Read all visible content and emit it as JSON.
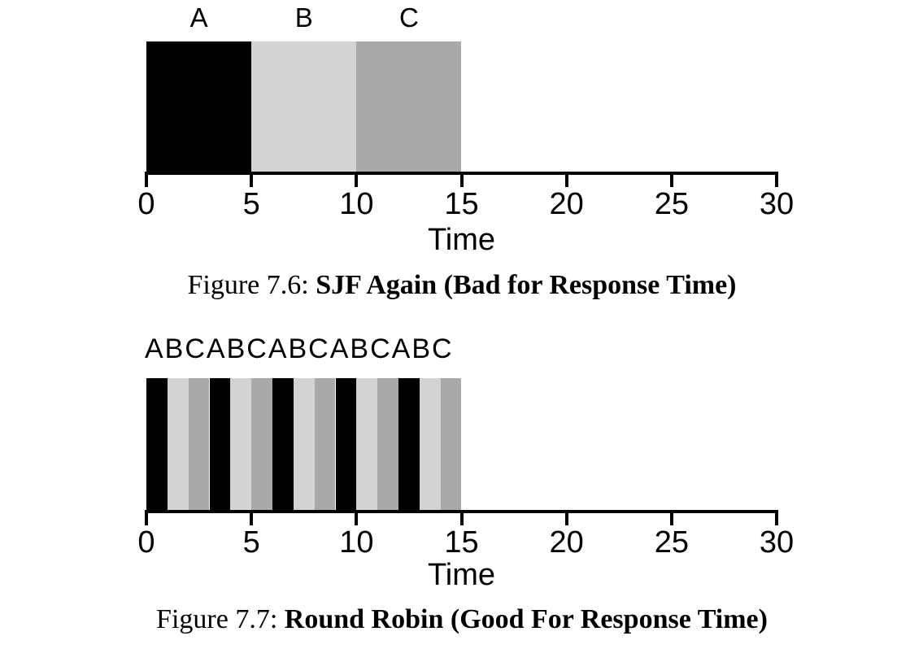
{
  "colors": {
    "background": "#ffffff",
    "text": "#000000",
    "job_a": "#000000",
    "job_b": "#d3d3d3",
    "job_c": "#a9a9a9",
    "axis": "#000000"
  },
  "chart_data": [
    {
      "type": "bar",
      "subtype": "scheduling-timeline",
      "title": "Figure 7.6: SJF Again (Bad for Response Time)",
      "xlabel": "Time",
      "xlim": [
        0,
        30
      ],
      "xticks": [
        0,
        5,
        10,
        15,
        20,
        25,
        30
      ],
      "grid": false,
      "legend": "none",
      "bar_labels_on_top": true,
      "series": [
        {
          "name": "A",
          "start": 0,
          "end": 5,
          "color": "#000000"
        },
        {
          "name": "B",
          "start": 5,
          "end": 10,
          "color": "#d3d3d3"
        },
        {
          "name": "C",
          "start": 10,
          "end": 15,
          "color": "#a9a9a9"
        }
      ]
    },
    {
      "type": "bar",
      "subtype": "scheduling-timeline",
      "title": "Figure 7.7: Round Robin (Good For Response Time)",
      "top_label": "ABCABCABCABCABC",
      "xlabel": "Time",
      "xlim": [
        0,
        30
      ],
      "xticks": [
        0,
        5,
        10,
        15,
        20,
        25,
        30
      ],
      "grid": false,
      "legend": "none",
      "time_slice": 1,
      "bar_labels_on_top": false,
      "series": [
        {
          "name": "A",
          "start": 0,
          "end": 1,
          "color": "#000000"
        },
        {
          "name": "B",
          "start": 1,
          "end": 2,
          "color": "#d3d3d3"
        },
        {
          "name": "C",
          "start": 2,
          "end": 3,
          "color": "#a9a9a9"
        },
        {
          "name": "A",
          "start": 3,
          "end": 4,
          "color": "#000000"
        },
        {
          "name": "B",
          "start": 4,
          "end": 5,
          "color": "#d3d3d3"
        },
        {
          "name": "C",
          "start": 5,
          "end": 6,
          "color": "#a9a9a9"
        },
        {
          "name": "A",
          "start": 6,
          "end": 7,
          "color": "#000000"
        },
        {
          "name": "B",
          "start": 7,
          "end": 8,
          "color": "#d3d3d3"
        },
        {
          "name": "C",
          "start": 8,
          "end": 9,
          "color": "#a9a9a9"
        },
        {
          "name": "A",
          "start": 9,
          "end": 10,
          "color": "#000000"
        },
        {
          "name": "B",
          "start": 10,
          "end": 11,
          "color": "#d3d3d3"
        },
        {
          "name": "C",
          "start": 11,
          "end": 12,
          "color": "#a9a9a9"
        },
        {
          "name": "A",
          "start": 12,
          "end": 13,
          "color": "#000000"
        },
        {
          "name": "B",
          "start": 13,
          "end": 14,
          "color": "#d3d3d3"
        },
        {
          "name": "C",
          "start": 14,
          "end": 15,
          "color": "#a9a9a9"
        }
      ]
    }
  ],
  "figures": [
    {
      "caption_prefix": "Figure 7.6: ",
      "caption_title": "SJF Again (Bad for Response Time)"
    },
    {
      "caption_prefix": "Figure 7.7: ",
      "caption_title": "Round Robin (Good For Response Time)"
    }
  ]
}
